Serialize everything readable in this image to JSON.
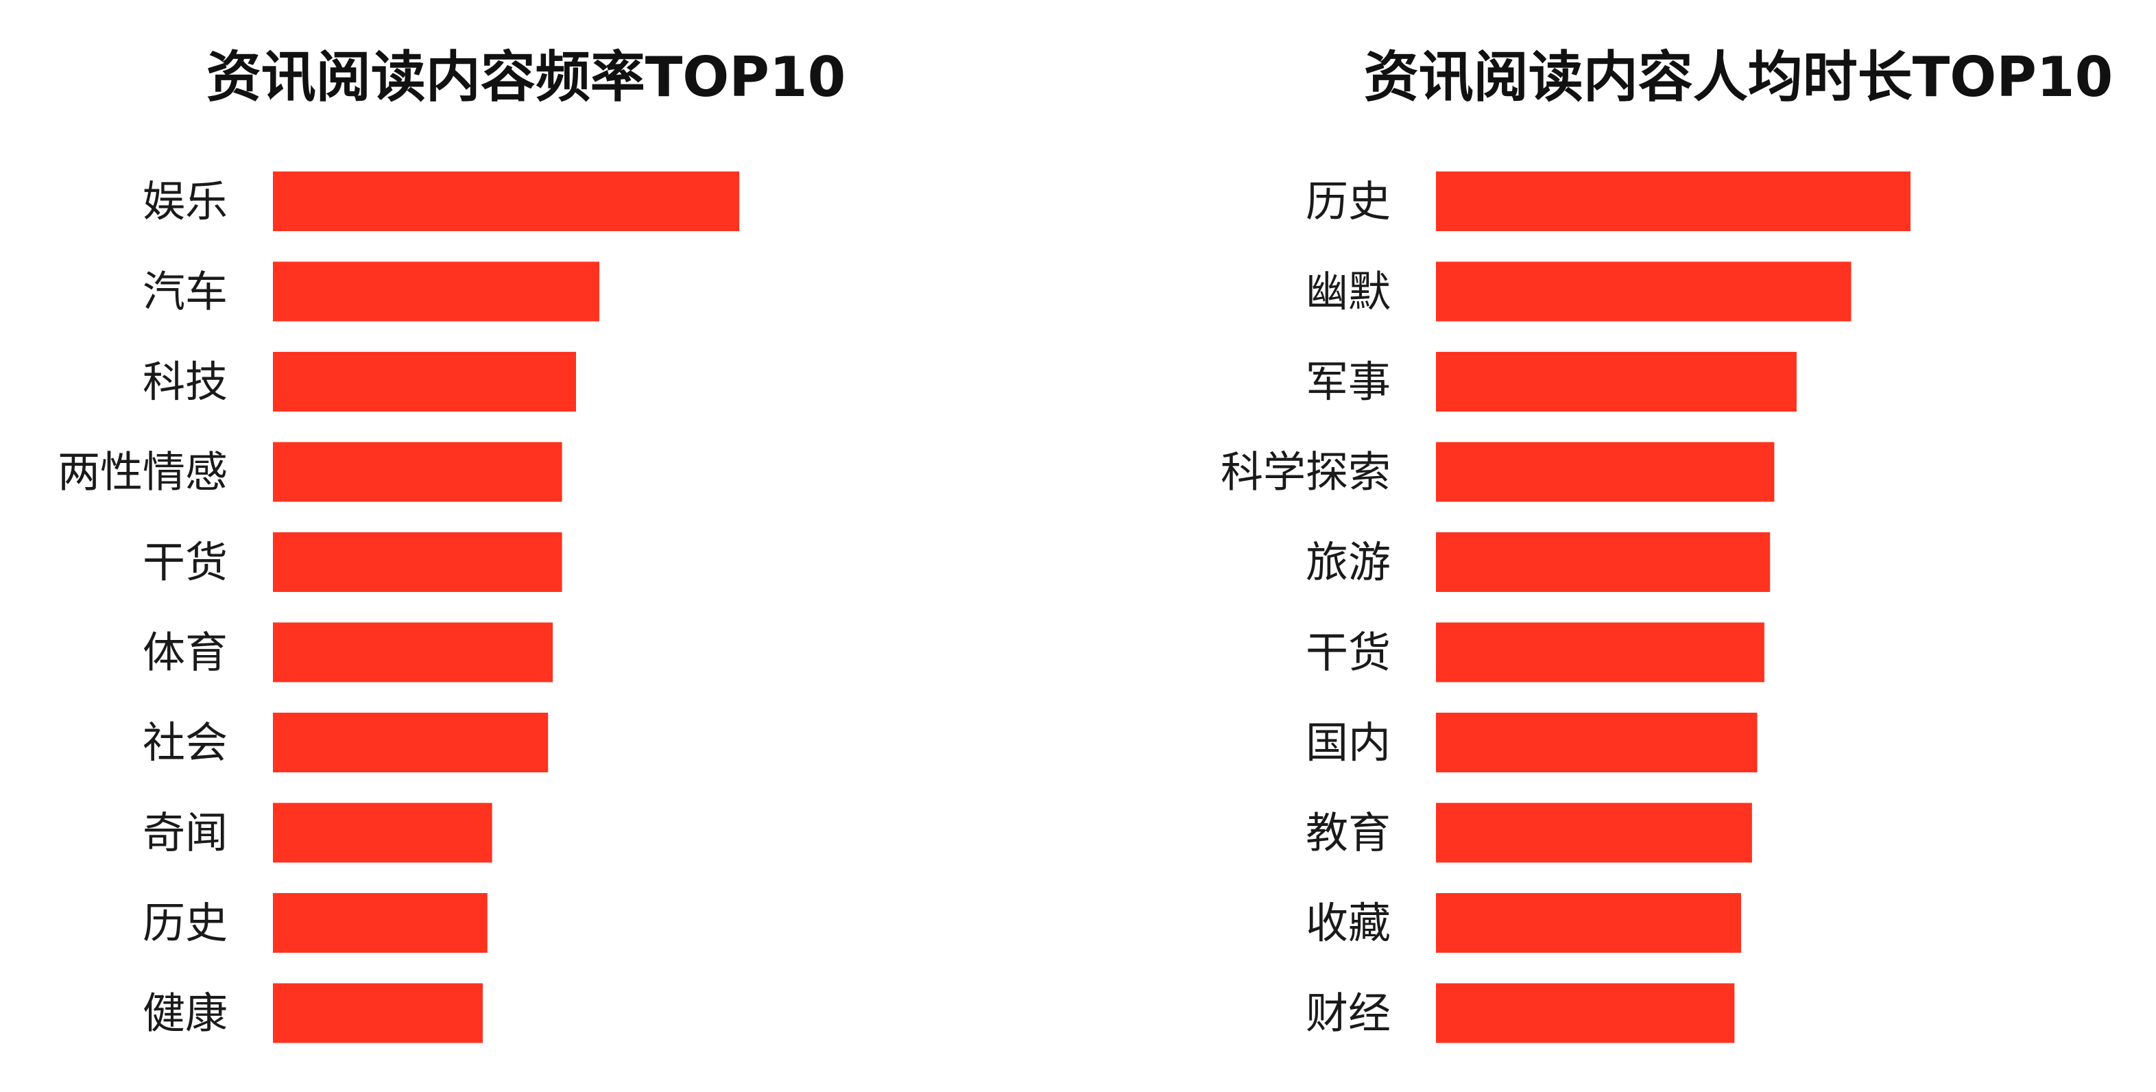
{
  "chart_data": [
    {
      "type": "bar",
      "orientation": "horizontal",
      "title": "资讯阅读内容频率TOP10",
      "categories": [
        "娱乐",
        "汽车",
        "科技",
        "两性情感",
        "干货",
        "体育",
        "社会",
        "奇闻",
        "历史",
        "健康"
      ],
      "values": [
        100,
        70,
        65,
        62,
        62,
        60,
        59,
        47,
        46,
        45
      ],
      "xlabel": "",
      "ylabel": "",
      "xlim": [
        0,
        100
      ],
      "grid": false,
      "legend": "none",
      "bar_color": "#ff331f",
      "axis_visible": false
    },
    {
      "type": "bar",
      "orientation": "horizontal",
      "title": "资讯阅读内容人均时长TOP10",
      "categories": [
        "历史",
        "幽默",
        "军事",
        "科学探索",
        "旅游",
        "干货",
        "国内",
        "教育",
        "收藏",
        "财经"
      ],
      "values": [
        100,
        87.5,
        76,
        71.3,
        70.4,
        69.2,
        67.7,
        66.6,
        64.3,
        62.9
      ],
      "xlabel": "",
      "ylabel": "",
      "xlim": [
        0,
        100
      ],
      "grid": false,
      "legend": "none",
      "bar_color": "#ff331f",
      "axis_visible": false
    }
  ]
}
